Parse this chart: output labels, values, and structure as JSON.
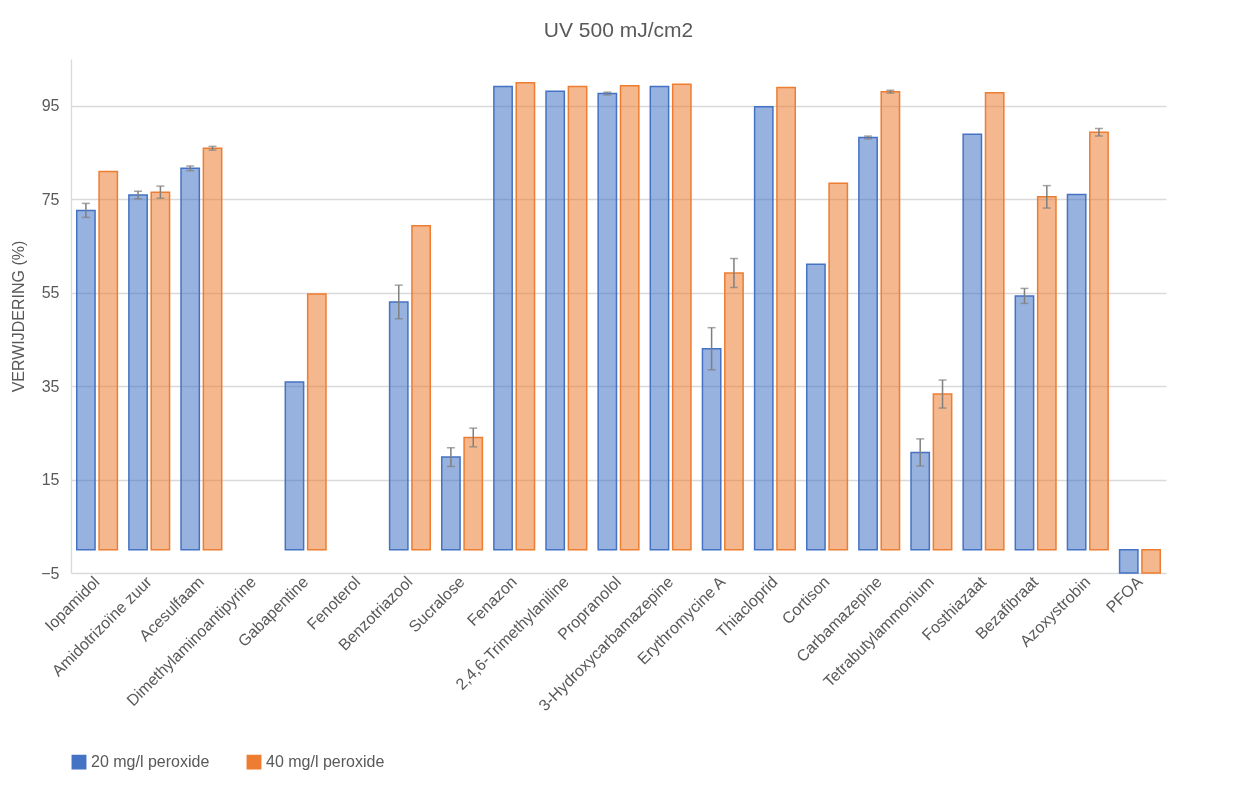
{
  "chart_data": {
    "type": "bar",
    "title": "UV 500 mJ/cm2",
    "ylabel": "VERWIJDERING (%)",
    "categories": [
      "Iopamidol",
      "Amidotrizoïne zuur",
      "Acesulfaam",
      "Dimethylaminoantipyrine",
      "Gabapentine",
      "Fenoterol",
      "Benzotriazool",
      "Sucralose",
      "Fenazon",
      "2,4,6-Trimethylaniline",
      "Propranolol",
      "3-Hydroxycarbamazepine",
      "Erythromycine A",
      "Thiacloprid",
      "Cortison",
      "Carbamazepine",
      "Tetrabutylammonium",
      "Fosthiazaat",
      "Bezafibraat",
      "Azoxystrobin",
      "PFOA"
    ],
    "series": [
      {
        "name": "20 mg/l peroxide",
        "color": "#4472c4",
        "values": [
          72.6,
          75.9,
          81.6,
          null,
          35.9,
          null,
          53.0,
          19.8,
          99.1,
          98.1,
          97.6,
          99.1,
          43.0,
          94.8,
          61.1,
          88.2,
          20.8,
          88.9,
          54.3,
          76.0,
          -5
        ],
        "errors": [
          1.5,
          0.8,
          0.5,
          null,
          null,
          null,
          3.6,
          2.0,
          null,
          null,
          0.3,
          null,
          4.5,
          null,
          null,
          0.3,
          2.9,
          null,
          1.6,
          null,
          null
        ]
      },
      {
        "name": "40 mg/l peroxide",
        "color": "#ed7d31",
        "values": [
          80.9,
          76.5,
          85.9,
          null,
          54.7,
          null,
          69.3,
          24.0,
          99.9,
          99.1,
          99.3,
          99.6,
          59.2,
          98.9,
          78.4,
          98.0,
          33.3,
          97.8,
          75.5,
          89.3,
          -5
        ],
        "errors": [
          null,
          1.3,
          0.4,
          null,
          null,
          null,
          null,
          2.0,
          null,
          null,
          null,
          null,
          3.1,
          null,
          null,
          0.3,
          3.0,
          null,
          2.4,
          0.8,
          null
        ]
      }
    ],
    "ylim": [
      -5,
      105
    ],
    "yticks": [
      -5,
      15,
      35,
      55,
      75,
      95
    ],
    "grid": "y",
    "legend": "bottom"
  }
}
